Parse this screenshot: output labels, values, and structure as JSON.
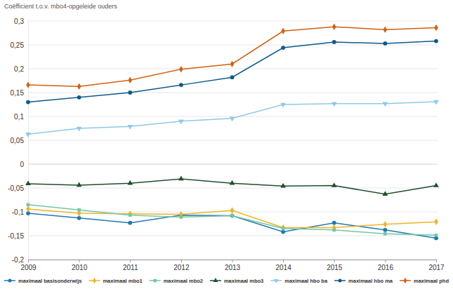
{
  "chart_data": {
    "type": "line",
    "y_label": "Coëfficient t.o.v. mbo4-opgeleide ouders",
    "categories": [
      "2009",
      "2010",
      "2011",
      "2012",
      "2013",
      "2014",
      "2015",
      "2016",
      "2017"
    ],
    "ylim": [
      -0.2,
      0.3
    ],
    "yticks": [
      {
        "value": -0.2,
        "label": "-0,2"
      },
      {
        "value": -0.15,
        "label": "-0,15"
      },
      {
        "value": -0.1,
        "label": "-0,1"
      },
      {
        "value": -0.05,
        "label": "-0,05"
      },
      0,
      {
        "value": 0.05,
        "label": "0,05"
      },
      {
        "value": 0.1,
        "label": "0,1"
      },
      {
        "value": 0.15,
        "label": "0,15"
      },
      {
        "value": 0.2,
        "label": "0,2"
      },
      {
        "value": 0.25,
        "label": "0,25"
      },
      {
        "value": 0.3,
        "label": "0,3"
      }
    ],
    "grid": true,
    "legend": "bottom",
    "series": [
      {
        "name": "maximaal basisonderwijs",
        "color": "#1f78b4",
        "marker": "circle",
        "values": [
          -0.103,
          -0.113,
          -0.123,
          -0.107,
          -0.108,
          -0.142,
          -0.123,
          -0.138,
          -0.155
        ]
      },
      {
        "name": "maximaal mbo1",
        "color": "#f0b323",
        "marker": "diamond",
        "values": [
          -0.094,
          -0.103,
          -0.104,
          -0.105,
          -0.097,
          -0.133,
          -0.133,
          -0.126,
          -0.121
        ]
      },
      {
        "name": "maximaal mbo2",
        "color": "#72c7a5",
        "marker": "square",
        "values": [
          -0.085,
          -0.096,
          -0.107,
          -0.111,
          -0.108,
          -0.135,
          -0.138,
          -0.146,
          -0.149
        ]
      },
      {
        "name": "maximaal mbo3",
        "color": "#1e4f2e",
        "marker": "triangle",
        "values": [
          -0.041,
          -0.044,
          -0.04,
          -0.031,
          -0.04,
          -0.046,
          -0.045,
          -0.063,
          -0.045
        ]
      },
      {
        "name": "maximaal hbo ba",
        "color": "#8ec9e9",
        "marker": "triangle-down",
        "values": [
          0.063,
          0.075,
          0.079,
          0.09,
          0.096,
          0.125,
          0.127,
          0.127,
          0.131
        ]
      },
      {
        "name": "maximaal hbo ma",
        "color": "#0c5a8c",
        "marker": "circle",
        "values": [
          0.13,
          0.14,
          0.15,
          0.166,
          0.182,
          0.244,
          0.256,
          0.253,
          0.258
        ]
      },
      {
        "name": "maximaal phd",
        "color": "#d2600f",
        "marker": "diamond",
        "values": [
          0.166,
          0.163,
          0.176,
          0.199,
          0.21,
          0.279,
          0.288,
          0.282,
          0.286
        ]
      }
    ]
  }
}
